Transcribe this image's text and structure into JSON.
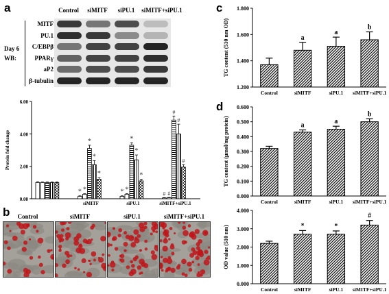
{
  "panels": {
    "a": "a",
    "b": "b",
    "c": "c",
    "d": "d"
  },
  "western_blot": {
    "lanes": [
      "Control",
      "siMITF",
      "siPU.1",
      "siMITF+siPU.1"
    ],
    "day_label": "Day 6",
    "wb_label": "WB:",
    "proteins": [
      {
        "name": "MITF",
        "intensity": [
          0.85,
          0.55,
          0.75,
          0.2
        ]
      },
      {
        "name": "PU.1",
        "intensity": [
          0.9,
          0.85,
          0.45,
          0.25
        ]
      },
      {
        "name": "C/EBPβ",
        "intensity": [
          0.55,
          0.8,
          0.8,
          0.95
        ]
      },
      {
        "name": "PPARγ",
        "intensity": [
          0.65,
          0.8,
          0.8,
          0.9
        ]
      },
      {
        "name": "aP2",
        "intensity": [
          0.6,
          0.75,
          0.75,
          0.85
        ]
      },
      {
        "name": "β-tubulin",
        "intensity": [
          0.95,
          0.95,
          0.95,
          0.95
        ]
      }
    ]
  },
  "staining": {
    "labels": [
      "Control",
      "siMITF",
      "siPU.1",
      "siMITF+siPU.1"
    ],
    "red_density": [
      0.25,
      0.45,
      0.5,
      0.6
    ],
    "color": "#c0151a"
  },
  "chart_data": [
    {
      "id": "a-fold",
      "type": "bar",
      "ylabel": "Protein fold change",
      "ylim": [
        0,
        6
      ],
      "yticks": [
        "0.00",
        "2.00",
        "4.00",
        "6.00"
      ],
      "categories": [
        "",
        "siMITF",
        "siPU.1",
        "siMITF+siPU.1"
      ],
      "values": [
        [
          1.0,
          1.0,
          1.0,
          1.0,
          1.0,
          1.0
        ],
        [
          0.15,
          0.28,
          3.1,
          2.1,
          1.2,
          0.0
        ],
        [
          0.15,
          0.28,
          3.3,
          2.4,
          1.1,
          0.0
        ],
        [
          0.05,
          0.06,
          4.85,
          4.0,
          1.95,
          0.0
        ]
      ],
      "errors": [
        [
          0.05,
          0.04,
          0.04,
          0.04,
          0.04,
          0.04
        ],
        [
          0.03,
          0.03,
          0.2,
          0.25,
          0.1,
          0.0
        ],
        [
          0.03,
          0.03,
          0.15,
          0.3,
          0.1,
          0.0
        ],
        [
          0.02,
          0.02,
          0.25,
          0.6,
          0.15,
          0.0
        ]
      ],
      "marks": [
        [
          "",
          "",
          "",
          "",
          "",
          ""
        ],
        [
          "*",
          "*",
          "*",
          "*",
          "*",
          ""
        ],
        [
          "*",
          "*",
          "*",
          "*",
          "*",
          ""
        ],
        [
          "#",
          "#",
          "#",
          "#",
          "#",
          ""
        ]
      ],
      "series_patterns": [
        "white",
        "white",
        "hlines",
        "vlines",
        "checker",
        "none"
      ]
    },
    {
      "id": "c",
      "type": "bar",
      "ylabel": "TG content (510 nm OD)",
      "ylim": [
        1.2,
        1.8
      ],
      "yticks": [
        "1.200",
        "1.400",
        "1.600",
        "1.800"
      ],
      "categories": [
        "Control",
        "siMITF",
        "siPU.1",
        "siMITF+siPU.1"
      ],
      "values": [
        1.37,
        1.48,
        1.51,
        1.56
      ],
      "errors": [
        0.05,
        0.06,
        0.07,
        0.06
      ],
      "marks": [
        "",
        "a",
        "a",
        "b"
      ]
    },
    {
      "id": "d",
      "type": "bar",
      "ylabel": "TG content (µmol/mg protein)",
      "ylim": [
        0.0,
        0.6
      ],
      "yticks": [
        "0.000",
        "0.100",
        "0.200",
        "0.300",
        "0.400",
        "0.500",
        "0.600"
      ],
      "categories": [
        "Control",
        "siMITF",
        "siPU.1",
        "siMITF+siPU.1"
      ],
      "values": [
        0.32,
        0.43,
        0.45,
        0.5
      ],
      "errors": [
        0.015,
        0.015,
        0.02,
        0.02
      ],
      "marks": [
        "",
        "a",
        "a",
        "b"
      ]
    },
    {
      "id": "d-od",
      "type": "bar",
      "ylabel": "OD value (510 nm)",
      "ylim": [
        0,
        4
      ],
      "yticks": [
        "0.000",
        "1.000",
        "2.000",
        "3.000",
        "4.000"
      ],
      "categories": [
        "Control",
        "siMITF",
        "siPU.1",
        "siMITF+siPU.1"
      ],
      "values": [
        2.2,
        2.7,
        2.7,
        3.2
      ],
      "errors": [
        0.12,
        0.2,
        0.18,
        0.25
      ],
      "marks": [
        "",
        "*",
        "*",
        "#"
      ]
    }
  ]
}
